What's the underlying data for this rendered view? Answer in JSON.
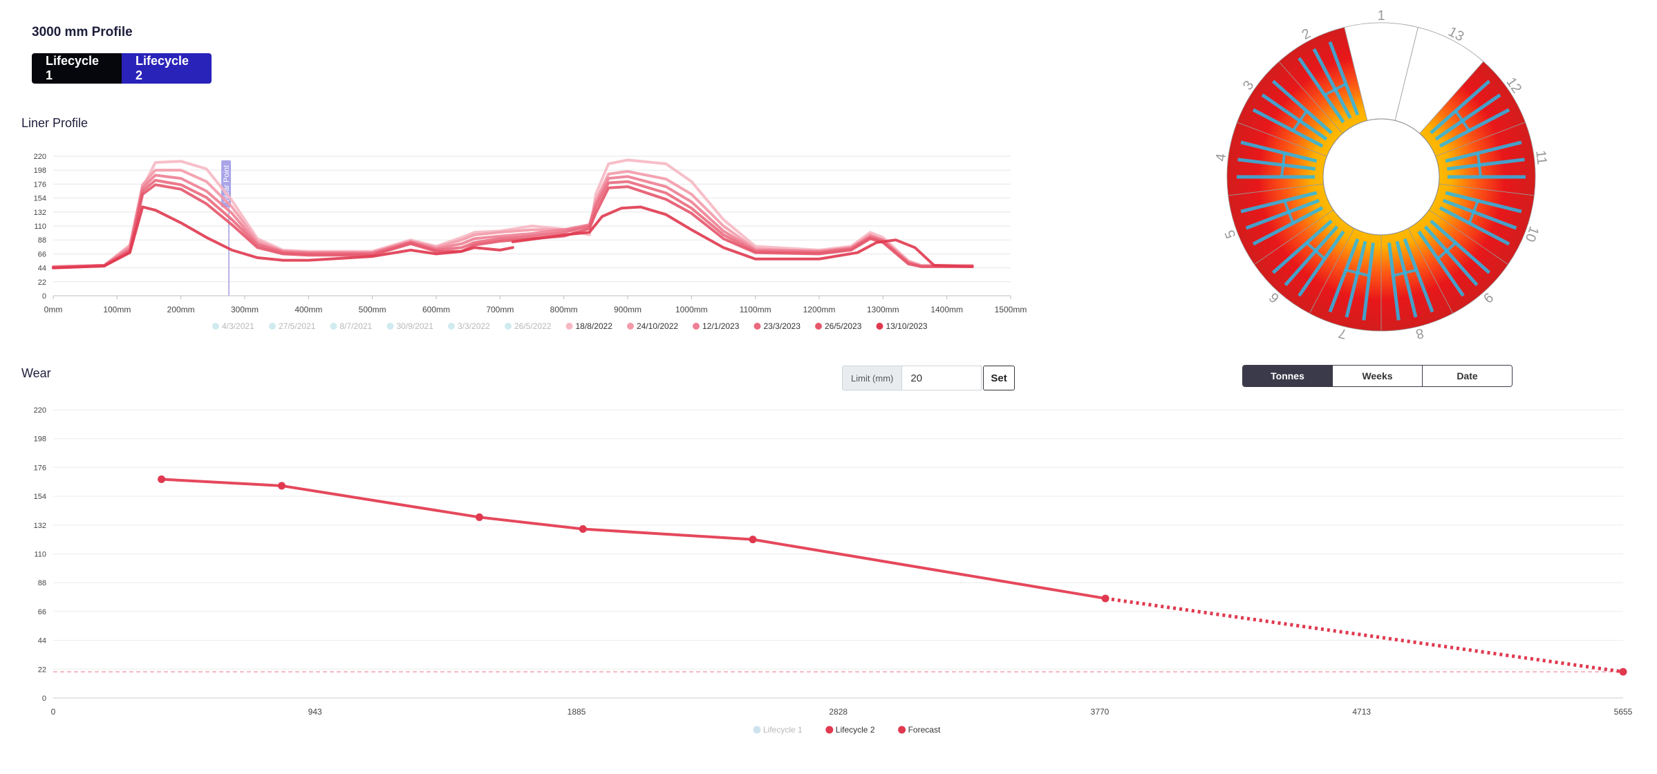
{
  "page_title": "3000 mm Profile",
  "lifecycle_buttons": [
    "Lifecycle 1",
    "Lifecycle 2"
  ],
  "liner_title": "Liner Profile",
  "wear_title": "Wear",
  "limit": {
    "label": "Limit (mm)",
    "value": "20",
    "set_label": "Set"
  },
  "axis_toggle": {
    "options": [
      "Tonnes",
      "Weeks",
      "Date"
    ],
    "active": "Tonnes"
  },
  "colors": {
    "accent": "#e5485c",
    "lifecycle1_bg": "#06070c",
    "lifecycle2_bg": "#2a23b9"
  },
  "chart_data": [
    {
      "type": "line",
      "id": "liner-profile",
      "title": "",
      "xlabel": "",
      "ylabel": "",
      "x_ticks": [
        "0mm",
        "100mm",
        "200mm",
        "300mm",
        "400mm",
        "500mm",
        "600mm",
        "700mm",
        "800mm",
        "900mm",
        "1000mm",
        "1100mm",
        "1200mm",
        "1300mm",
        "1400mm",
        "1500mm"
      ],
      "xlim": [
        0,
        1500
      ],
      "y_ticks": [
        0,
        22,
        44,
        66,
        88,
        110,
        132,
        154,
        176,
        198,
        220
      ],
      "ylim": [
        0,
        220
      ],
      "annotation": {
        "label": "Wear Point",
        "x": 260
      },
      "legend": [
        {
          "name": "4/3/2021",
          "color": "#d0ebef",
          "hidden": true
        },
        {
          "name": "27/5/2021",
          "color": "#d0ebef",
          "hidden": true
        },
        {
          "name": "8/7/2021",
          "color": "#d0ebef",
          "hidden": true
        },
        {
          "name": "30/9/2021",
          "color": "#d0ebef",
          "hidden": true
        },
        {
          "name": "3/3/2022",
          "color": "#d0ebef",
          "hidden": true
        },
        {
          "name": "26/5/2022",
          "color": "#d0ebef",
          "hidden": true
        },
        {
          "name": "18/8/2022",
          "color": "#f6b8c3",
          "hidden": false
        },
        {
          "name": "24/10/2022",
          "color": "#f39aaa",
          "hidden": false
        },
        {
          "name": "12/1/2023",
          "color": "#ee8094",
          "hidden": false
        },
        {
          "name": "23/3/2023",
          "color": "#ea6a7e",
          "hidden": false
        },
        {
          "name": "26/5/2023",
          "color": "#e5576c",
          "hidden": false
        },
        {
          "name": "13/10/2023",
          "color": "#e0394f",
          "hidden": false
        }
      ],
      "series": [
        {
          "name": "18/8/2022",
          "color": "#f6b8c3",
          "x": [
            0,
            80,
            120,
            140,
            160,
            200,
            240,
            280,
            320,
            360,
            400,
            500,
            560,
            600,
            640,
            660,
            700,
            750,
            800,
            840,
            850,
            870,
            900,
            960,
            1000,
            1050,
            1100,
            1200,
            1250,
            1280,
            1300,
            1340,
            1360,
            1400,
            1440
          ],
          "y": [
            46,
            48,
            80,
            170,
            210,
            212,
            200,
            150,
            90,
            72,
            70,
            70,
            88,
            78,
            92,
            100,
            102,
            110,
            105,
            96,
            160,
            208,
            214,
            208,
            180,
            120,
            78,
            72,
            78,
            100,
            92,
            55,
            48,
            48,
            48
          ]
        },
        {
          "name": "24/10/2022",
          "color": "#f39aaa",
          "x": [
            0,
            80,
            120,
            140,
            160,
            200,
            240,
            280,
            320,
            360,
            400,
            500,
            560,
            600,
            640,
            660,
            700,
            750,
            800,
            840,
            850,
            870,
            900,
            960,
            1000,
            1050,
            1100,
            1200,
            1250,
            1280,
            1300,
            1340,
            1360,
            1400,
            1440
          ],
          "y": [
            46,
            48,
            78,
            175,
            198,
            198,
            180,
            140,
            86,
            70,
            68,
            68,
            86,
            76,
            88,
            96,
            100,
            104,
            104,
            110,
            150,
            192,
            196,
            184,
            160,
            110,
            74,
            70,
            76,
            96,
            88,
            54,
            47,
            47,
            47
          ]
        },
        {
          "name": "12/1/2023",
          "color": "#ee8094",
          "x": [
            0,
            80,
            120,
            140,
            160,
            200,
            240,
            280,
            320,
            360,
            400,
            500,
            560,
            600,
            640,
            660,
            700,
            750,
            800,
            840,
            850,
            870,
            900,
            960,
            1000,
            1050,
            1100,
            1200,
            1250,
            1280,
            1300,
            1340,
            1360,
            1400,
            1440
          ],
          "y": [
            45,
            48,
            75,
            170,
            190,
            185,
            165,
            130,
            82,
            70,
            68,
            68,
            85,
            74,
            82,
            90,
            94,
            98,
            104,
            112,
            145,
            185,
            188,
            172,
            148,
            102,
            72,
            70,
            75,
            94,
            88,
            52,
            47,
            47,
            47
          ]
        },
        {
          "name": "23/3/2023",
          "color": "#ea6a7e",
          "x": [
            0,
            80,
            120,
            140,
            160,
            200,
            240,
            280,
            320,
            360,
            400,
            500,
            560,
            600,
            640,
            660,
            700,
            750,
            800,
            840,
            850,
            870,
            900,
            960,
            1000,
            1050,
            1100,
            1200,
            1250,
            1280,
            1300,
            1340,
            1360,
            1400,
            1440
          ],
          "y": [
            45,
            48,
            72,
            165,
            182,
            175,
            155,
            120,
            80,
            68,
            66,
            66,
            84,
            72,
            76,
            84,
            90,
            94,
            100,
            110,
            140,
            178,
            180,
            162,
            138,
            96,
            70,
            68,
            74,
            92,
            86,
            52,
            46,
            46,
            46
          ]
        },
        {
          "name": "26/5/2023",
          "color": "#e5576c",
          "x": [
            0,
            80,
            120,
            140,
            160,
            200,
            240,
            280,
            320,
            360,
            400,
            500,
            560,
            600,
            640,
            660,
            700,
            750,
            800,
            840,
            850,
            870,
            900,
            960,
            1000,
            1050,
            1100,
            1200,
            1250,
            1280,
            1300,
            1340,
            1360,
            1400,
            1440
          ],
          "y": [
            44,
            47,
            70,
            160,
            175,
            168,
            145,
            112,
            76,
            66,
            64,
            64,
            82,
            70,
            70,
            80,
            86,
            90,
            94,
            106,
            130,
            170,
            172,
            152,
            130,
            90,
            68,
            66,
            72,
            90,
            84,
            50,
            46,
            46,
            46
          ]
        },
        {
          "name": "13/10/2023",
          "color": "#e0394f",
          "x": [
            0,
            80,
            120,
            140,
            160,
            200,
            240,
            280,
            320,
            360,
            400,
            500,
            560,
            600,
            640,
            660,
            700,
            720
          ],
          "y": [
            44,
            47,
            68,
            140,
            135,
            115,
            92,
            72,
            60,
            56,
            56,
            62,
            72,
            66,
            70,
            76,
            72,
            76
          ]
        },
        {
          "name": "13/10/2023-b",
          "color": "#e0394f",
          "x": [
            720,
            800,
            840,
            860,
            890,
            920,
            960,
            1000,
            1050,
            1100,
            1200,
            1260,
            1290,
            1320,
            1350,
            1380,
            1440
          ],
          "y": [
            85,
            96,
            100,
            125,
            138,
            140,
            128,
            104,
            76,
            58,
            58,
            68,
            84,
            88,
            76,
            48,
            46
          ]
        }
      ]
    },
    {
      "type": "line",
      "id": "wear",
      "title": "",
      "xlabel": "",
      "ylabel": "",
      "x_ticks": [
        0,
        943,
        1885,
        2828,
        3770,
        4713,
        5655
      ],
      "xlim": [
        0,
        5655
      ],
      "y_ticks": [
        0,
        22,
        44,
        66,
        88,
        110,
        132,
        154,
        176,
        198,
        220
      ],
      "ylim": [
        0,
        220
      ],
      "limit_line": 20,
      "legend": [
        {
          "name": "Lifecycle 1",
          "color": "#cfe3ef",
          "hidden": true
        },
        {
          "name": "Lifecycle 2",
          "color": "#e0394f",
          "hidden": false
        },
        {
          "name": "Forecast",
          "color": "#e0394f",
          "hidden": false
        }
      ],
      "series": [
        {
          "name": "Lifecycle 2",
          "color": "#e5485c",
          "style": "solid",
          "x": [
            390,
            823,
            1535,
            1908,
            2520,
            3790
          ],
          "y": [
            167,
            162,
            138,
            129,
            121,
            76
          ]
        },
        {
          "name": "Forecast",
          "color": "#e0394f",
          "style": "dotted",
          "x": [
            3790,
            5655
          ],
          "y": [
            76,
            20
          ]
        }
      ]
    },
    {
      "type": "heatmap",
      "id": "liner-ring",
      "sector_labels": [
        "1",
        "13",
        "12",
        "11",
        "10",
        "9",
        "8",
        "7",
        "6",
        "5",
        "4",
        "3",
        "2"
      ]
    }
  ]
}
